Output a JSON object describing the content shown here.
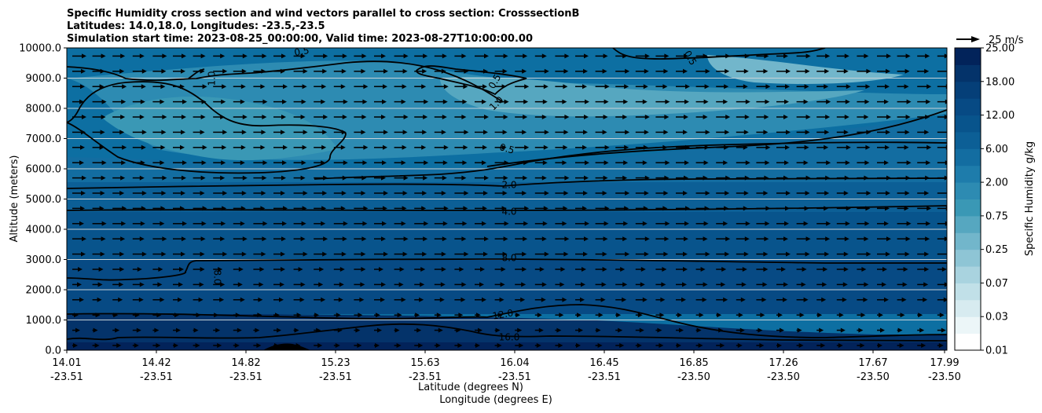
{
  "chart_data": {
    "type": "heatmap",
    "title_lines": [
      "Specific Humidity cross section and wind vectors parallel to cross section: CrosssectionB",
      "Latitudes: 14.0,18.0, Longitudes: -23.5,-23.5",
      "Simulation start time: 2023-08-25_00:00:00, Valid time: 2023-08-27T10:00:00.00"
    ],
    "ylabel": "Altitude (meters)",
    "xlabel_lat": "Latitude (degrees N)",
    "xlabel_lon": "Longitude (degrees E)",
    "ylim": [
      0,
      10000
    ],
    "y_ticks": [
      0,
      1000,
      2000,
      3000,
      4000,
      5000,
      6000,
      7000,
      8000,
      9000,
      10000
    ],
    "y_tick_labels": [
      "0.0",
      "1000.0",
      "2000.0",
      "3000.0",
      "4000.0",
      "5000.0",
      "6000.0",
      "7000.0",
      "8000.0",
      "9000.0",
      "10000.0"
    ],
    "x_lat_ticks": [
      "14.01",
      "14.42",
      "14.82",
      "15.23",
      "15.63",
      "16.04",
      "16.45",
      "16.85",
      "17.26",
      "17.67",
      "17.99"
    ],
    "x_lon_ticks": [
      "-23.51",
      "-23.51",
      "-23.51",
      "-23.51",
      "-23.51",
      "-23.51",
      "-23.51",
      "-23.50",
      "-23.50",
      "-23.50",
      "-23.50"
    ],
    "colorbar": {
      "label": "Specific Humidity g/kg",
      "levels": [
        0.01,
        0.02,
        0.03,
        0.05,
        0.07,
        0.1,
        0.25,
        0.5,
        0.75,
        1.0,
        2.0,
        4.0,
        6.0,
        8.0,
        12.0,
        16.0,
        18.0,
        21.0,
        25.0
      ],
      "tick_labels": [
        "0.01",
        "0.03",
        "0.07",
        "0.25",
        "0.75",
        "2.00",
        "6.00",
        "12.00",
        "18.00",
        "25.00"
      ],
      "colors": [
        "#ffffff",
        "#ecf6f8",
        "#d7ebf0",
        "#c1e0e8",
        "#a9d3df",
        "#8ec5d5",
        "#72b6cb",
        "#56a7c0",
        "#3a98b5",
        "#2d8bb2",
        "#1e7cab",
        "#136da1",
        "#0c5f96",
        "#08548c",
        "#074a84",
        "#053f78",
        "#04336a",
        "#02235a"
      ]
    },
    "quiver_key": {
      "label": "25 m/s",
      "speed": 25
    },
    "contour_labels": [
      "0.5",
      "1.0",
      "0.5",
      "1.0",
      "0.5",
      "0.5",
      "2.0",
      "4.0",
      "8.0",
      "8.0",
      "12.0",
      "16.0"
    ],
    "wind_vectors_shown": true
  }
}
